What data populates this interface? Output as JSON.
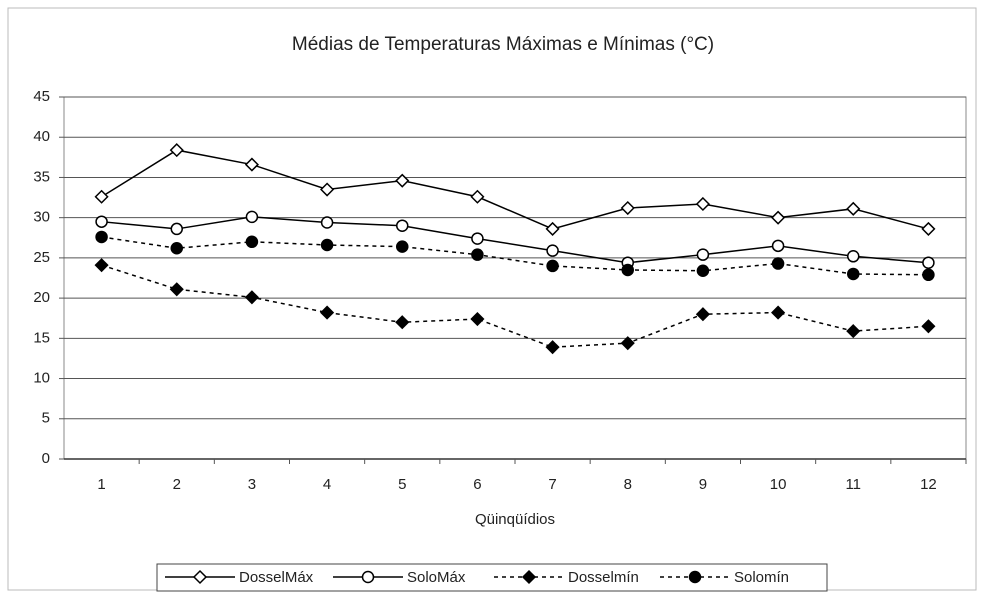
{
  "chart_data": {
    "type": "line",
    "title": "Médias de Temperaturas Máximas e Mínimas (°C)",
    "x_label": "Qüinqüídios",
    "categories": [
      "1",
      "2",
      "3",
      "4",
      "5",
      "6",
      "7",
      "8",
      "9",
      "10",
      "11",
      "12"
    ],
    "series": [
      {
        "name": "DosselMáx",
        "color": "#000000",
        "marker": "diamond",
        "filled": false,
        "dashed": false,
        "values": [
          32.6,
          38.4,
          36.6,
          33.5,
          34.6,
          32.6,
          28.6,
          31.2,
          31.7,
          30.0,
          31.1,
          28.6
        ]
      },
      {
        "name": "SoloMáx",
        "color": "#000000",
        "marker": "circle",
        "filled": false,
        "dashed": false,
        "values": [
          29.5,
          28.6,
          30.1,
          29.4,
          29.0,
          27.4,
          25.9,
          24.4,
          25.4,
          26.5,
          25.2,
          24.4
        ]
      },
      {
        "name": "Dosselmín",
        "color": "#000000",
        "marker": "diamond",
        "filled": true,
        "dashed": true,
        "values": [
          24.1,
          21.1,
          20.1,
          18.2,
          17.0,
          17.4,
          13.9,
          14.4,
          18.0,
          18.2,
          15.9,
          16.5
        ]
      },
      {
        "name": "Solomín",
        "color": "#000000",
        "marker": "circle",
        "filled": true,
        "dashed": true,
        "values": [
          27.6,
          26.2,
          27.0,
          26.6,
          26.4,
          25.4,
          24.0,
          23.5,
          23.4,
          24.3,
          23.0,
          22.9
        ]
      }
    ],
    "ylim": [
      0,
      45
    ],
    "yticks": [
      0,
      5,
      10,
      15,
      20,
      25,
      30,
      35,
      40,
      45
    ],
    "grid": true,
    "legend": "bottom"
  }
}
